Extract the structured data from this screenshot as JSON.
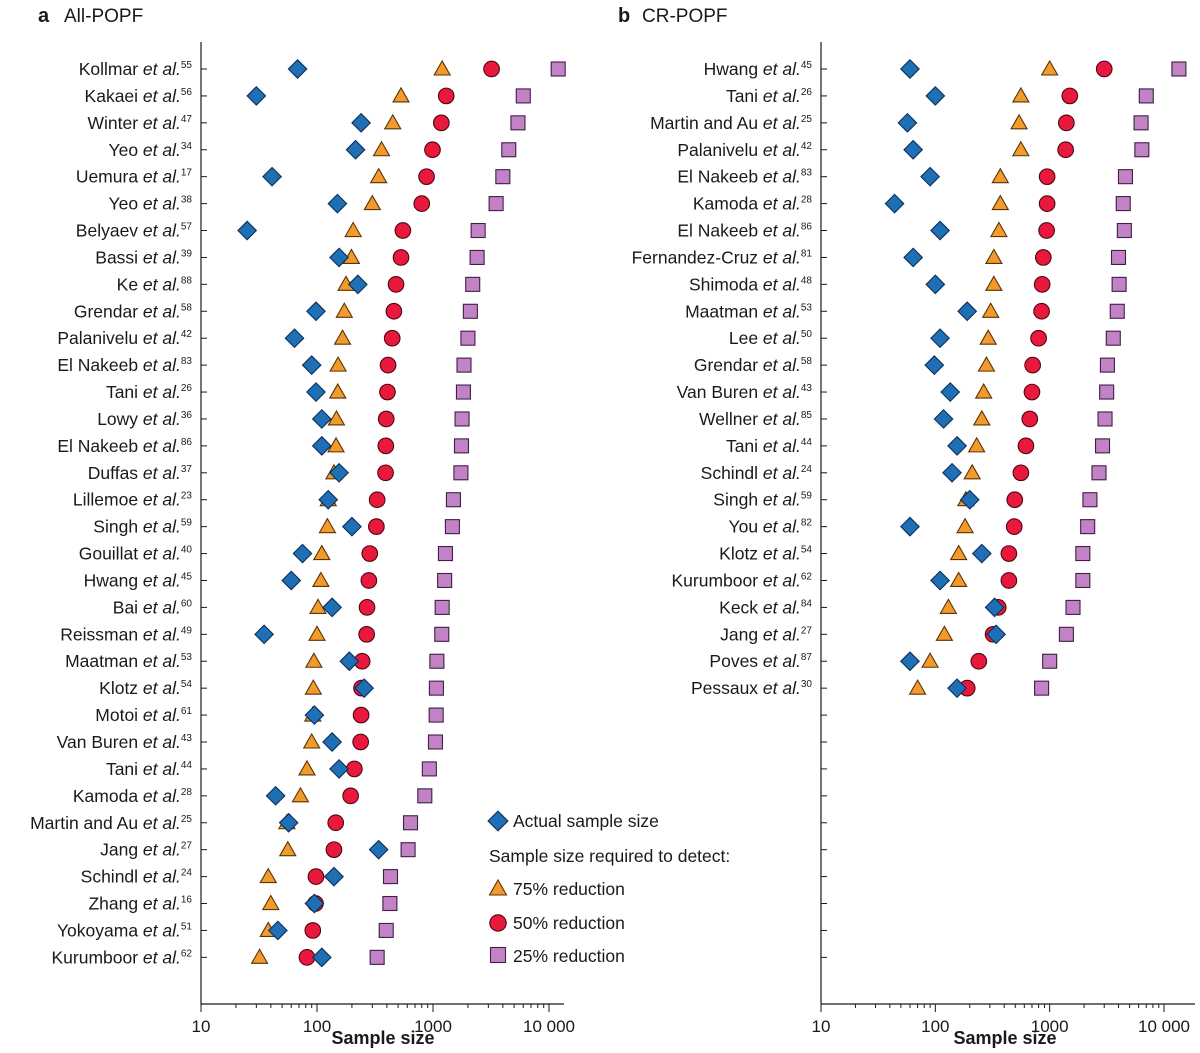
{
  "legend": {
    "actual": "Actual sample size",
    "heading": "Sample size required to detect:",
    "r75": "75% reduction",
    "r50": "50% reduction",
    "r25": "25% reduction"
  },
  "colors": {
    "actual": "#1f6fb7",
    "r75": "#f39a2c",
    "r50": "#e8193c",
    "r25": "#c183c6"
  },
  "chart_data": [
    {
      "type": "scatter",
      "panel": "a",
      "title": "All-POPF",
      "xlabel": "Sample size",
      "xscale": "log",
      "xlim": [
        10,
        10000
      ],
      "xticks": [
        10,
        100,
        1000,
        10000
      ],
      "xtick_labels": [
        "10",
        "100",
        "1000",
        "10 000"
      ],
      "rows": 34,
      "studies": [
        {
          "name": "Kollmar",
          "suffix": " et al.",
          "ref": "55",
          "actual": 68,
          "r75": 1200,
          "r50": 3200,
          "r25": 12000
        },
        {
          "name": "Kakaei",
          "suffix": " et al.",
          "ref": "56",
          "actual": 30,
          "r75": 530,
          "r50": 1300,
          "r25": 6000
        },
        {
          "name": "Winter",
          "suffix": " et al.",
          "ref": "47",
          "actual": 240,
          "r75": 450,
          "r50": 1180,
          "r25": 5400
        },
        {
          "name": "Yeo",
          "suffix": " et al.",
          "ref": "34",
          "actual": 215,
          "r75": 360,
          "r50": 990,
          "r25": 4500
        },
        {
          "name": "Uemura",
          "suffix": " et al.",
          "ref": "17",
          "actual": 41,
          "r75": 340,
          "r50": 880,
          "r25": 4000
        },
        {
          "name": "Yeo",
          "suffix": " et al.",
          "ref": "38",
          "actual": 150,
          "r75": 300,
          "r50": 800,
          "r25": 3500
        },
        {
          "name": "Belyaev",
          "suffix": " et al.",
          "ref": "57",
          "actual": 25,
          "r75": 205,
          "r50": 550,
          "r25": 2450
        },
        {
          "name": "Bassi",
          "suffix": " et al.",
          "ref": "39",
          "actual": 155,
          "r75": 198,
          "r50": 530,
          "r25": 2400
        },
        {
          "name": "Ke",
          "suffix": " et al.",
          "ref": "88",
          "actual": 225,
          "r75": 178,
          "r50": 480,
          "r25": 2200
        },
        {
          "name": "Grendar",
          "suffix": " et al.",
          "ref": "58",
          "actual": 98,
          "r75": 172,
          "r50": 460,
          "r25": 2100
        },
        {
          "name": "Palanivelu",
          "suffix": " et al.",
          "ref": "42",
          "actual": 64,
          "r75": 166,
          "r50": 445,
          "r25": 2000
        },
        {
          "name": "El Nakeeb",
          "suffix": " et al.",
          "ref": "83",
          "actual": 90,
          "r75": 152,
          "r50": 410,
          "r25": 1850
        },
        {
          "name": "Tani",
          "suffix": " et al.",
          "ref": "26",
          "actual": 98,
          "r75": 151,
          "r50": 405,
          "r25": 1830
        },
        {
          "name": "Lowy",
          "suffix": " et al.",
          "ref": "36",
          "actual": 110,
          "r75": 147,
          "r50": 395,
          "r25": 1780
        },
        {
          "name": "El Nakeeb",
          "suffix": " et al.",
          "ref": "86",
          "actual": 110,
          "r75": 146,
          "r50": 392,
          "r25": 1760
        },
        {
          "name": "Duffas",
          "suffix": " et al.",
          "ref": "37",
          "actual": 155,
          "r75": 140,
          "r50": 390,
          "r25": 1740
        },
        {
          "name": "Lillemoe",
          "suffix": " et al.",
          "ref": "23",
          "actual": 125,
          "r75": 125,
          "r50": 330,
          "r25": 1500
        },
        {
          "name": "Singh",
          "suffix": " et al.",
          "ref": "59",
          "actual": 200,
          "r75": 123,
          "r50": 325,
          "r25": 1470
        },
        {
          "name": "Gouillat",
          "suffix": " et al.",
          "ref": "40",
          "actual": 75,
          "r75": 110,
          "r50": 285,
          "r25": 1280
        },
        {
          "name": "Hwang",
          "suffix": " et al.",
          "ref": "45",
          "actual": 60,
          "r75": 108,
          "r50": 280,
          "r25": 1260
        },
        {
          "name": "Bai",
          "suffix": " et al.",
          "ref": "60",
          "actual": 135,
          "r75": 102,
          "r50": 270,
          "r25": 1200
        },
        {
          "name": "Reissman",
          "suffix": " et al.",
          "ref": "49",
          "actual": 35,
          "r75": 100,
          "r50": 268,
          "r25": 1190
        },
        {
          "name": "Maatman",
          "suffix": " et al.",
          "ref": "53",
          "actual": 190,
          "r75": 94,
          "r50": 245,
          "r25": 1080
        },
        {
          "name": "Klotz",
          "suffix": " et al.",
          "ref": "54",
          "actual": 255,
          "r75": 93,
          "r50": 242,
          "r25": 1070
        },
        {
          "name": "Motoi",
          "suffix": " et al.",
          "ref": "61",
          "actual": 95,
          "r75": 92,
          "r50": 240,
          "r25": 1065
        },
        {
          "name": "Van Buren",
          "suffix": " et al.",
          "ref": "43",
          "actual": 135,
          "r75": 90,
          "r50": 238,
          "r25": 1050
        },
        {
          "name": "Tani",
          "suffix": " et al.",
          "ref": "44",
          "actual": 155,
          "r75": 82,
          "r50": 210,
          "r25": 930
        },
        {
          "name": "Kamoda",
          "suffix": " et al.",
          "ref": "28",
          "actual": 44,
          "r75": 72,
          "r50": 195,
          "r25": 850
        },
        {
          "name": "Martin and Au",
          "suffix": " et al.",
          "ref": "25",
          "actual": 57,
          "r75": 55,
          "r50": 145,
          "r25": 640
        },
        {
          "name": "Jang",
          "suffix": " et al.",
          "ref": "27",
          "actual": 340,
          "r75": 56,
          "r50": 140,
          "r25": 610
        },
        {
          "name": "Schindl",
          "suffix": " et al.",
          "ref": "24",
          "actual": 140,
          "r75": 38,
          "r50": 98,
          "r25": 430
        },
        {
          "name": "Zhang",
          "suffix": " et al.",
          "ref": "16",
          "actual": 95,
          "r75": 40,
          "r50": 97,
          "r25": 425
        },
        {
          "name": "Yokoyama",
          "suffix": " et al.",
          "ref": "51",
          "actual": 46,
          "r75": 38,
          "r50": 92,
          "r25": 395
        },
        {
          "name": "Kurumboor",
          "suffix": " et al.",
          "ref": "62",
          "actual": 110,
          "r75": 32,
          "r50": 82,
          "r25": 330
        }
      ]
    },
    {
      "type": "scatter",
      "panel": "b",
      "title": "CR-POPF",
      "xlabel": "Sample size",
      "xscale": "log",
      "xlim": [
        10,
        14000
      ],
      "xticks": [
        10,
        100,
        1000,
        10000
      ],
      "xtick_labels": [
        "10",
        "100",
        "1000",
        "10 000"
      ],
      "rows": 34,
      "studies": [
        {
          "name": "Hwang",
          "suffix": " et al.",
          "ref": "45",
          "actual": 60,
          "r75": 1000,
          "r50": 3000,
          "r25": 13500
        },
        {
          "name": "Tani",
          "suffix": " et al.",
          "ref": "26",
          "actual": 100,
          "r75": 560,
          "r50": 1500,
          "r25": 7000
        },
        {
          "name": "Martin and Au",
          "suffix": " et al.",
          "ref": "25",
          "actual": 57,
          "r75": 540,
          "r50": 1400,
          "r25": 6300
        },
        {
          "name": "Palanivelu",
          "suffix": " et al.",
          "ref": "42",
          "actual": 64,
          "r75": 560,
          "r50": 1380,
          "r25": 6400
        },
        {
          "name": "El Nakeeb",
          "suffix": " et al.",
          "ref": "83",
          "actual": 90,
          "r75": 370,
          "r50": 950,
          "r25": 4600
        },
        {
          "name": "Kamoda",
          "suffix": " et al.",
          "ref": "28",
          "actual": 44,
          "r75": 370,
          "r50": 950,
          "r25": 4400
        },
        {
          "name": "El Nakeeb",
          "suffix": " et al.",
          "ref": "86",
          "actual": 110,
          "r75": 360,
          "r50": 940,
          "r25": 4500
        },
        {
          "name": "Fernandez-Cruz",
          "suffix": " et al.",
          "ref": "81",
          "actual": 64,
          "r75": 325,
          "r50": 880,
          "r25": 4000
        },
        {
          "name": "Shimoda",
          "suffix": " et al.",
          "ref": "48",
          "actual": 100,
          "r75": 325,
          "r50": 860,
          "r25": 4050
        },
        {
          "name": "Maatman",
          "suffix": " et al.",
          "ref": "53",
          "actual": 190,
          "r75": 305,
          "r50": 850,
          "r25": 3900
        },
        {
          "name": "Lee",
          "suffix": " et al.",
          "ref": "50",
          "actual": 110,
          "r75": 290,
          "r50": 800,
          "r25": 3600
        },
        {
          "name": "Grendar",
          "suffix": " et al.",
          "ref": "58",
          "actual": 98,
          "r75": 280,
          "r50": 710,
          "r25": 3200
        },
        {
          "name": "Van Buren",
          "suffix": " et al.",
          "ref": "43",
          "actual": 135,
          "r75": 265,
          "r50": 700,
          "r25": 3150
        },
        {
          "name": "Wellner",
          "suffix": " et al.",
          "ref": "85",
          "actual": 118,
          "r75": 255,
          "r50": 670,
          "r25": 3050
        },
        {
          "name": "Tani",
          "suffix": " et al.",
          "ref": "44",
          "actual": 155,
          "r75": 230,
          "r50": 620,
          "r25": 2900
        },
        {
          "name": "Schindl",
          "suffix": " et al.",
          "ref": "24",
          "actual": 140,
          "r75": 210,
          "r50": 560,
          "r25": 2700
        },
        {
          "name": "Singh",
          "suffix": " et al.",
          "ref": "59",
          "actual": 200,
          "r75": 185,
          "r50": 495,
          "r25": 2250
        },
        {
          "name": "You",
          "suffix": " et al.",
          "ref": "82",
          "actual": 60,
          "r75": 182,
          "r50": 490,
          "r25": 2150
        },
        {
          "name": "Klotz",
          "suffix": " et al.",
          "ref": "54",
          "actual": 255,
          "r75": 160,
          "r50": 440,
          "r25": 1950
        },
        {
          "name": "Kurumboor",
          "suffix": " et al.",
          "ref": "62",
          "actual": 110,
          "r75": 160,
          "r50": 440,
          "r25": 1950
        },
        {
          "name": "Keck",
          "suffix": " et al.",
          "ref": "84",
          "actual": 330,
          "r75": 130,
          "r50": 355,
          "r25": 1600
        },
        {
          "name": "Jang",
          "suffix": " et al.",
          "ref": "27",
          "actual": 340,
          "r75": 120,
          "r50": 320,
          "r25": 1400
        },
        {
          "name": "Poves",
          "suffix": " et al.",
          "ref": "87",
          "actual": 60,
          "r75": 90,
          "r50": 240,
          "r25": 1000
        },
        {
          "name": "Pessaux",
          "suffix": " et al.",
          "ref": "30",
          "actual": 155,
          "r75": 70,
          "r50": 190,
          "r25": 850
        }
      ]
    }
  ]
}
